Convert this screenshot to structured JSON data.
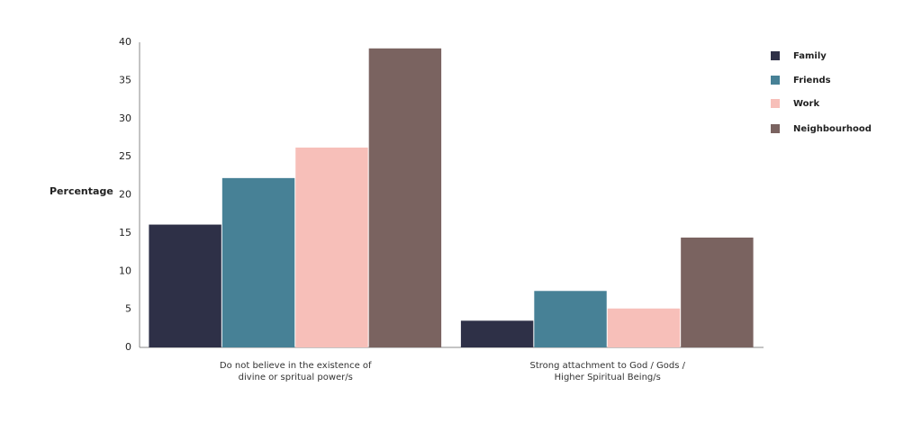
{
  "chart_data": {
    "type": "bar",
    "y_label": "Percentage",
    "categories": [
      "Do not believe in the existence of divine or spritual power/s",
      "Strong attachment to God / Gods / Higher Spiritual Being/s"
    ],
    "series": [
      {
        "name": "Family",
        "color": "#2e3047",
        "values": [
          16.1,
          3.5
        ]
      },
      {
        "name": "Friends",
        "color": "#478196",
        "values": [
          22.2,
          7.4
        ]
      },
      {
        "name": "Work",
        "color": "#f7bfb9",
        "values": [
          26.2,
          5.1
        ]
      },
      {
        "name": "Neighbourhood",
        "color": "#7a6360",
        "values": [
          39.2,
          14.4
        ]
      }
    ],
    "ylim": [
      0,
      40
    ],
    "yticks": [
      0,
      5,
      10,
      15,
      20,
      25,
      30,
      35,
      40
    ],
    "legend": "right"
  }
}
